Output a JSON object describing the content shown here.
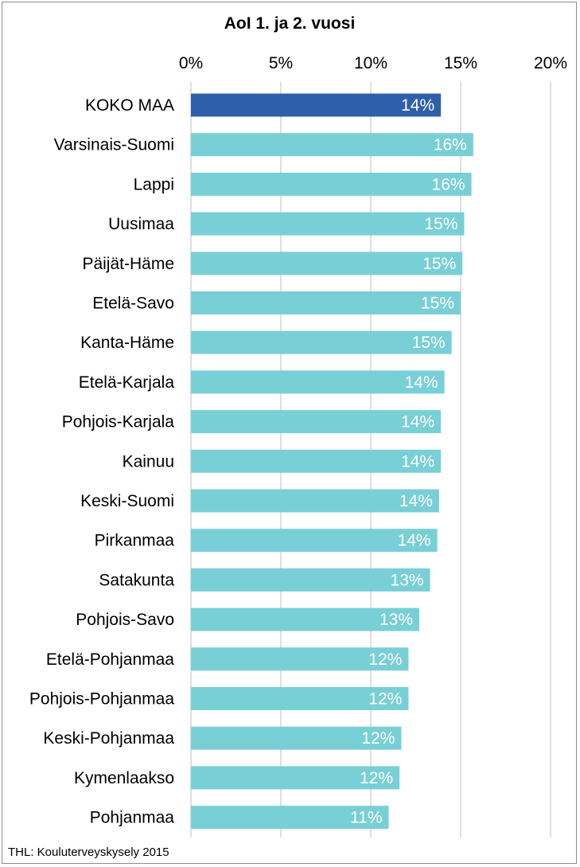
{
  "chart_data": {
    "type": "bar",
    "orientation": "horizontal",
    "title": "AoI 1. ja 2. vuosi",
    "xlim": [
      0,
      20
    ],
    "x_ticks": [
      "0%",
      "5%",
      "10%",
      "15%",
      "20%"
    ],
    "x_tick_values": [
      0,
      5,
      10,
      15,
      20
    ],
    "grid": true,
    "source": "THL: Kouluterveyskysely 2015",
    "highlight_color": "#2E5FAB",
    "bar_color": "#79CFD6",
    "categories": [
      "KOKO MAA",
      "Varsinais-Suomi",
      "Lappi",
      "Uusimaa",
      "Päijät-Häme",
      "Etelä-Savo",
      "Kanta-Häme",
      "Etelä-Karjala",
      "Pohjois-Karjala",
      "Kainuu",
      "Keski-Suomi",
      "Pirkanmaa",
      "Satakunta",
      "Pohjois-Savo",
      "Etelä-Pohjanmaa",
      "Pohjois-Pohjanmaa",
      "Keski-Pohjanmaa",
      "Kymenlaakso",
      "Pohjanmaa"
    ],
    "values": [
      13.9,
      15.7,
      15.6,
      15.2,
      15.1,
      15.0,
      14.5,
      14.1,
      13.9,
      13.9,
      13.8,
      13.7,
      13.3,
      12.7,
      12.1,
      12.1,
      11.7,
      11.6,
      11.0
    ],
    "labels": [
      "14%",
      "16%",
      "16%",
      "15%",
      "15%",
      "15%",
      "15%",
      "14%",
      "14%",
      "14%",
      "14%",
      "14%",
      "13%",
      "13%",
      "12%",
      "12%",
      "12%",
      "12%",
      "11%"
    ],
    "highlight_index": 0
  }
}
